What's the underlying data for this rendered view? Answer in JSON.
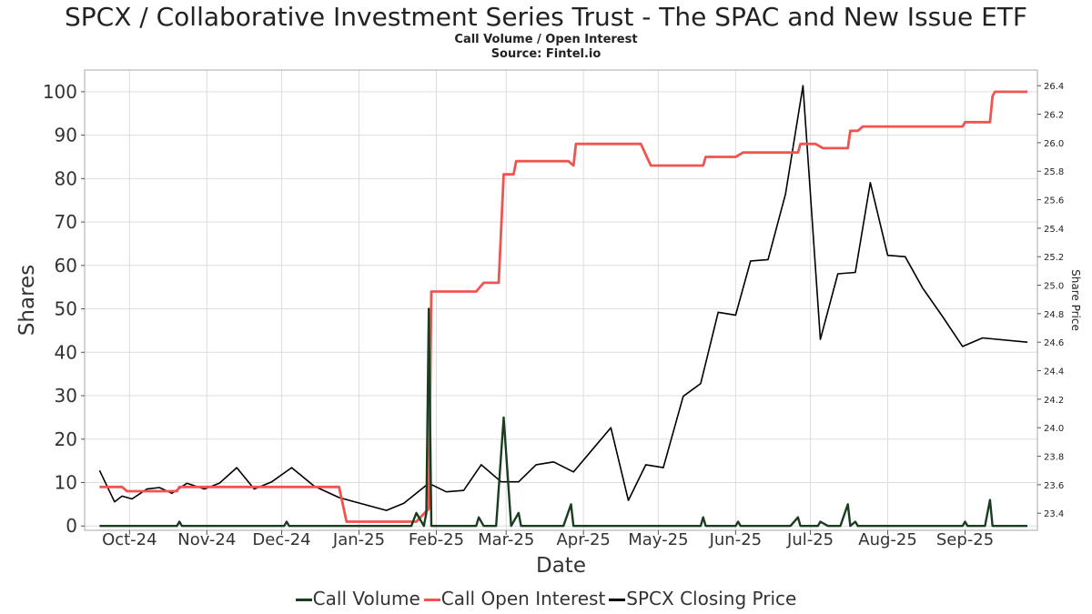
{
  "header": {
    "title": "SPCX / Collaborative Investment Series Trust - The SPAC and New Issue ETF",
    "subtitle1": "Call Volume / Open Interest",
    "subtitle2": "Source: Fintel.io"
  },
  "chart_data": {
    "type": "line",
    "xlabel": "Date",
    "ylabel": "Shares",
    "y2label": "Share Price",
    "xlim": [
      "2024-09-13",
      "2025-09-30"
    ],
    "ylim": [
      -1,
      105
    ],
    "y2lim": [
      23.28,
      26.51
    ],
    "grid": true,
    "legend_position": "bottom",
    "x_ticks": [
      {
        "label": "Oct-24",
        "date": "2024-10-01"
      },
      {
        "label": "Nov-24",
        "date": "2024-11-01"
      },
      {
        "label": "Dec-24",
        "date": "2024-12-01"
      },
      {
        "label": "Jan-25",
        "date": "2025-01-01"
      },
      {
        "label": "Feb-25",
        "date": "2025-02-01"
      },
      {
        "label": "Mar-25",
        "date": "2025-03-01"
      },
      {
        "label": "Apr-25",
        "date": "2025-04-01"
      },
      {
        "label": "May-25",
        "date": "2025-05-01"
      },
      {
        "label": "Jun-25",
        "date": "2025-06-01"
      },
      {
        "label": "Jul-25",
        "date": "2025-07-01"
      },
      {
        "label": "Aug-25",
        "date": "2025-08-01"
      },
      {
        "label": "Sep-25",
        "date": "2025-09-01"
      }
    ],
    "y_ticks": [
      0,
      10,
      20,
      30,
      40,
      50,
      60,
      70,
      80,
      90,
      100
    ],
    "y2_ticks": [
      "23.4",
      "23.6",
      "23.8",
      "24.0",
      "24.2",
      "24.4",
      "24.6",
      "24.8",
      "25.0",
      "25.2",
      "25.4",
      "25.6",
      "25.8",
      "26.0",
      "26.2",
      "26.4"
    ],
    "series": [
      {
        "name": "Call Volume",
        "color": "#1a3d1f",
        "axis": "left",
        "points": [
          [
            "2024-09-19",
            0
          ],
          [
            "2024-10-20",
            0
          ],
          [
            "2024-10-21",
            1
          ],
          [
            "2024-10-22",
            0
          ],
          [
            "2024-12-02",
            0
          ],
          [
            "2024-12-03",
            1
          ],
          [
            "2024-12-04",
            0
          ],
          [
            "2025-01-22",
            0
          ],
          [
            "2025-01-24",
            3
          ],
          [
            "2025-01-27",
            0
          ],
          [
            "2025-01-28",
            3
          ],
          [
            "2025-01-29",
            50
          ],
          [
            "2025-01-30",
            0
          ],
          [
            "2025-02-17",
            0
          ],
          [
            "2025-02-18",
            2
          ],
          [
            "2025-02-20",
            0
          ],
          [
            "2025-02-25",
            0
          ],
          [
            "2025-02-28",
            25
          ],
          [
            "2025-03-03",
            0
          ],
          [
            "2025-03-06",
            3
          ],
          [
            "2025-03-07",
            0
          ],
          [
            "2025-03-24",
            0
          ],
          [
            "2025-03-27",
            5
          ],
          [
            "2025-03-28",
            0
          ],
          [
            "2025-05-18",
            0
          ],
          [
            "2025-05-19",
            2
          ],
          [
            "2025-05-20",
            0
          ],
          [
            "2025-06-01",
            0
          ],
          [
            "2025-06-02",
            1
          ],
          [
            "2025-06-03",
            0
          ],
          [
            "2025-06-23",
            0
          ],
          [
            "2025-06-26",
            2
          ],
          [
            "2025-06-27",
            0
          ],
          [
            "2025-07-04",
            0
          ],
          [
            "2025-07-05",
            1
          ],
          [
            "2025-07-08",
            0
          ],
          [
            "2025-07-13",
            0
          ],
          [
            "2025-07-16",
            5
          ],
          [
            "2025-07-17",
            0
          ],
          [
            "2025-07-19",
            1
          ],
          [
            "2025-07-20",
            0
          ],
          [
            "2025-08-31",
            0
          ],
          [
            "2025-09-01",
            1
          ],
          [
            "2025-09-02",
            0
          ],
          [
            "2025-09-09",
            0
          ],
          [
            "2025-09-11",
            6
          ],
          [
            "2025-09-12",
            0
          ],
          [
            "2025-09-26",
            0
          ]
        ]
      },
      {
        "name": "Call Open Interest",
        "color": "#f05450",
        "axis": "left",
        "points": [
          [
            "2024-09-19",
            9
          ],
          [
            "2024-09-28",
            9
          ],
          [
            "2024-09-30",
            8
          ],
          [
            "2024-10-20",
            8
          ],
          [
            "2024-10-21",
            9
          ],
          [
            "2024-12-24",
            9
          ],
          [
            "2024-12-27",
            1
          ],
          [
            "2025-01-24",
            1
          ],
          [
            "2025-01-29",
            4
          ],
          [
            "2025-01-30",
            54
          ],
          [
            "2025-02-17",
            54
          ],
          [
            "2025-02-20",
            56
          ],
          [
            "2025-02-26",
            56
          ],
          [
            "2025-02-28",
            81
          ],
          [
            "2025-03-04",
            81
          ],
          [
            "2025-03-05",
            84
          ],
          [
            "2025-03-26",
            84
          ],
          [
            "2025-03-28",
            83
          ],
          [
            "2025-03-29",
            88
          ],
          [
            "2025-04-24",
            88
          ],
          [
            "2025-04-28",
            83
          ],
          [
            "2025-05-19",
            83
          ],
          [
            "2025-05-20",
            85
          ],
          [
            "2025-06-01",
            85
          ],
          [
            "2025-06-04",
            86
          ],
          [
            "2025-06-26",
            86
          ],
          [
            "2025-06-27",
            88
          ],
          [
            "2025-07-03",
            88
          ],
          [
            "2025-07-06",
            87
          ],
          [
            "2025-07-16",
            87
          ],
          [
            "2025-07-17",
            91
          ],
          [
            "2025-07-20",
            91
          ],
          [
            "2025-07-22",
            92
          ],
          [
            "2025-08-31",
            92
          ],
          [
            "2025-09-01",
            93
          ],
          [
            "2025-09-11",
            93
          ],
          [
            "2025-09-12",
            99
          ],
          [
            "2025-09-13",
            100
          ],
          [
            "2025-09-26",
            100
          ]
        ]
      },
      {
        "name": "SPCX Closing Price",
        "color": "#000000",
        "axis": "right",
        "points": [
          [
            "2024-09-19",
            23.7
          ],
          [
            "2024-09-25",
            23.48
          ],
          [
            "2024-09-28",
            23.52
          ],
          [
            "2024-10-02",
            23.5
          ],
          [
            "2024-10-08",
            23.57
          ],
          [
            "2024-10-13",
            23.58
          ],
          [
            "2024-10-18",
            23.54
          ],
          [
            "2024-10-24",
            23.61
          ],
          [
            "2024-10-31",
            23.57
          ],
          [
            "2024-11-06",
            23.61
          ],
          [
            "2024-11-13",
            23.72
          ],
          [
            "2024-11-20",
            23.57
          ],
          [
            "2024-11-27",
            23.62
          ],
          [
            "2024-12-05",
            23.72
          ],
          [
            "2024-12-14",
            23.59
          ],
          [
            "2024-12-24",
            23.51
          ],
          [
            "2025-01-12",
            23.42
          ],
          [
            "2025-01-19",
            23.47
          ],
          [
            "2025-01-29",
            23.61
          ],
          [
            "2025-02-05",
            23.55
          ],
          [
            "2025-02-12",
            23.56
          ],
          [
            "2025-02-19",
            23.74
          ],
          [
            "2025-02-27",
            23.62
          ],
          [
            "2025-03-06",
            23.62
          ],
          [
            "2025-03-13",
            23.74
          ],
          [
            "2025-03-20",
            23.76
          ],
          [
            "2025-03-28",
            23.69
          ],
          [
            "2025-04-12",
            24.0
          ],
          [
            "2025-04-19",
            23.49
          ],
          [
            "2025-04-26",
            23.74
          ],
          [
            "2025-05-03",
            23.72
          ],
          [
            "2025-05-11",
            24.22
          ],
          [
            "2025-05-18",
            24.31
          ],
          [
            "2025-05-25",
            24.81
          ],
          [
            "2025-06-01",
            24.79
          ],
          [
            "2025-06-07",
            25.17
          ],
          [
            "2025-06-14",
            25.18
          ],
          [
            "2025-06-21",
            25.64
          ],
          [
            "2025-06-28",
            26.4
          ],
          [
            "2025-07-05",
            24.62
          ],
          [
            "2025-07-12",
            25.08
          ],
          [
            "2025-07-19",
            25.09
          ],
          [
            "2025-07-25",
            25.72
          ],
          [
            "2025-08-01",
            25.21
          ],
          [
            "2025-08-08",
            25.2
          ],
          [
            "2025-08-15",
            24.98
          ],
          [
            "2025-08-23",
            24.78
          ],
          [
            "2025-08-31",
            24.57
          ],
          [
            "2025-09-08",
            24.63
          ],
          [
            "2025-09-26",
            24.6
          ]
        ]
      }
    ]
  }
}
